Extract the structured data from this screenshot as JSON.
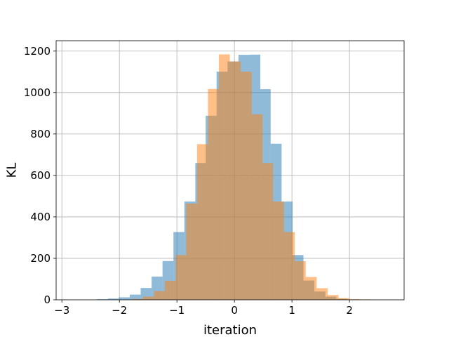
{
  "chart_data": {
    "type": "histogram",
    "xlabel": "iteration",
    "ylabel": "KL",
    "xlim": [
      -3.1,
      2.95
    ],
    "ylim": [
      0,
      1250
    ],
    "xticks": [
      -3,
      -2,
      -1,
      0,
      1,
      2
    ],
    "yticks": [
      0,
      200,
      400,
      600,
      800,
      1000,
      1200
    ],
    "grid": true,
    "series": [
      {
        "color": "#1f77b4",
        "opacity": 0.5,
        "bins": [
          {
            "x0": -2.39,
            "x1": -2.2,
            "value": 3
          },
          {
            "x0": -2.2,
            "x1": -2.01,
            "value": 6
          },
          {
            "x0": -2.01,
            "x1": -1.82,
            "value": 12
          },
          {
            "x0": -1.82,
            "x1": -1.63,
            "value": 25
          },
          {
            "x0": -1.63,
            "x1": -1.44,
            "value": 57
          },
          {
            "x0": -1.44,
            "x1": -1.25,
            "value": 112
          },
          {
            "x0": -1.25,
            "x1": -1.06,
            "value": 187
          },
          {
            "x0": -1.06,
            "x1": -0.87,
            "value": 327
          },
          {
            "x0": -0.87,
            "x1": -0.68,
            "value": 474
          },
          {
            "x0": -0.68,
            "x1": -0.5,
            "value": 660
          },
          {
            "x0": -0.5,
            "x1": -0.31,
            "value": 888
          },
          {
            "x0": -0.31,
            "x1": -0.12,
            "value": 1101
          },
          {
            "x0": -0.12,
            "x1": 0.07,
            "value": 1150
          },
          {
            "x0": 0.07,
            "x1": 0.26,
            "value": 1182
          },
          {
            "x0": 0.26,
            "x1": 0.45,
            "value": 1183
          },
          {
            "x0": 0.45,
            "x1": 0.63,
            "value": 1016
          },
          {
            "x0": 0.63,
            "x1": 0.82,
            "value": 753
          },
          {
            "x0": 0.82,
            "x1": 1.01,
            "value": 474
          },
          {
            "x0": 1.01,
            "x1": 1.2,
            "value": 216
          },
          {
            "x0": 1.2,
            "x1": 1.39,
            "value": 93
          },
          {
            "x0": 1.39,
            "x1": 1.58,
            "value": 40
          },
          {
            "x0": 1.58,
            "x1": 1.77,
            "value": 15
          },
          {
            "x0": 1.77,
            "x1": 1.96,
            "value": 5
          },
          {
            "x0": 1.96,
            "x1": 2.15,
            "value": 2
          }
        ]
      },
      {
        "color": "#ff7f0e",
        "opacity": 0.5,
        "bins": [
          {
            "x0": -1.78,
            "x1": -1.59,
            "value": 4
          },
          {
            "x0": -1.59,
            "x1": -1.4,
            "value": 15
          },
          {
            "x0": -1.4,
            "x1": -1.21,
            "value": 42
          },
          {
            "x0": -1.21,
            "x1": -1.02,
            "value": 92
          },
          {
            "x0": -1.02,
            "x1": -0.84,
            "value": 216
          },
          {
            "x0": -0.84,
            "x1": -0.65,
            "value": 464
          },
          {
            "x0": -0.65,
            "x1": -0.46,
            "value": 751
          },
          {
            "x0": -0.46,
            "x1": -0.27,
            "value": 1017
          },
          {
            "x0": -0.27,
            "x1": -0.08,
            "value": 1184
          },
          {
            "x0": -0.08,
            "x1": 0.11,
            "value": 1150
          },
          {
            "x0": 0.11,
            "x1": 0.3,
            "value": 1101
          },
          {
            "x0": 0.3,
            "x1": 0.49,
            "value": 895
          },
          {
            "x0": 0.49,
            "x1": 0.67,
            "value": 660
          },
          {
            "x0": 0.67,
            "x1": 0.86,
            "value": 474
          },
          {
            "x0": 0.86,
            "x1": 1.05,
            "value": 327
          },
          {
            "x0": 1.05,
            "x1": 1.24,
            "value": 186
          },
          {
            "x0": 1.24,
            "x1": 1.43,
            "value": 110
          },
          {
            "x0": 1.43,
            "x1": 1.62,
            "value": 56
          },
          {
            "x0": 1.62,
            "x1": 1.81,
            "value": 23
          },
          {
            "x0": 1.81,
            "x1": 2.0,
            "value": 8
          },
          {
            "x0": 2.0,
            "x1": 2.19,
            "value": 3
          },
          {
            "x0": 2.19,
            "x1": 2.38,
            "value": 2
          }
        ]
      }
    ]
  }
}
